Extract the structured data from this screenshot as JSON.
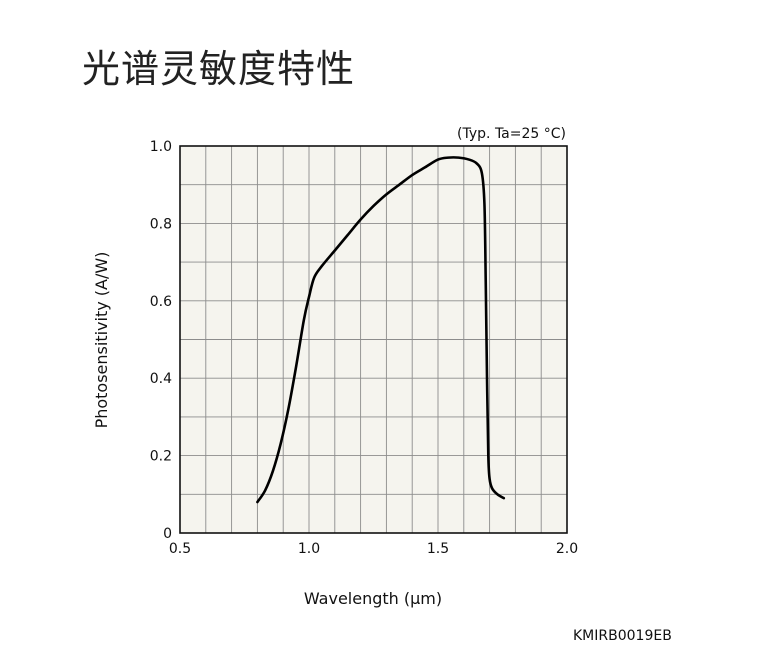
{
  "page": {
    "title": "光谱灵敏度特性",
    "doc_code": "KMIRB0019EB"
  },
  "chart_data": {
    "type": "line",
    "title": "",
    "annotation": "(Typ. Ta=25 °C)",
    "xlabel": "Wavelength (µm)",
    "ylabel": "Photosensitivity (A/W)",
    "xlim": [
      0.5,
      2.0
    ],
    "ylim": [
      0,
      1.0
    ],
    "x_ticks": [
      0.5,
      1.0,
      1.5,
      2.0
    ],
    "x_tick_labels": [
      "0.5",
      "1.0",
      "1.5",
      "2.0"
    ],
    "y_ticks": [
      0,
      0.2,
      0.4,
      0.6,
      0.8,
      1.0
    ],
    "y_tick_labels": [
      "0",
      "0.2",
      "0.4",
      "0.6",
      "0.8",
      "1.0"
    ],
    "grid": true,
    "x_grid_step": 0.1,
    "y_grid_step": 0.1,
    "series": [
      {
        "color": "#000000",
        "x": [
          0.8,
          0.83,
          0.86,
          0.89,
          0.92,
          0.95,
          0.98,
          1.0,
          1.02,
          1.05,
          1.1,
          1.15,
          1.2,
          1.25,
          1.3,
          1.35,
          1.4,
          1.45,
          1.5,
          1.54,
          1.58,
          1.62,
          1.65,
          1.67,
          1.68,
          1.685,
          1.69,
          1.695,
          1.7,
          1.71,
          1.73,
          1.755
        ],
        "y": [
          0.08,
          0.11,
          0.16,
          0.23,
          0.32,
          0.43,
          0.55,
          0.61,
          0.66,
          0.69,
          0.73,
          0.77,
          0.81,
          0.845,
          0.875,
          0.9,
          0.925,
          0.945,
          0.965,
          0.97,
          0.97,
          0.965,
          0.955,
          0.93,
          0.85,
          0.65,
          0.4,
          0.2,
          0.14,
          0.115,
          0.1,
          0.09
        ]
      }
    ]
  }
}
